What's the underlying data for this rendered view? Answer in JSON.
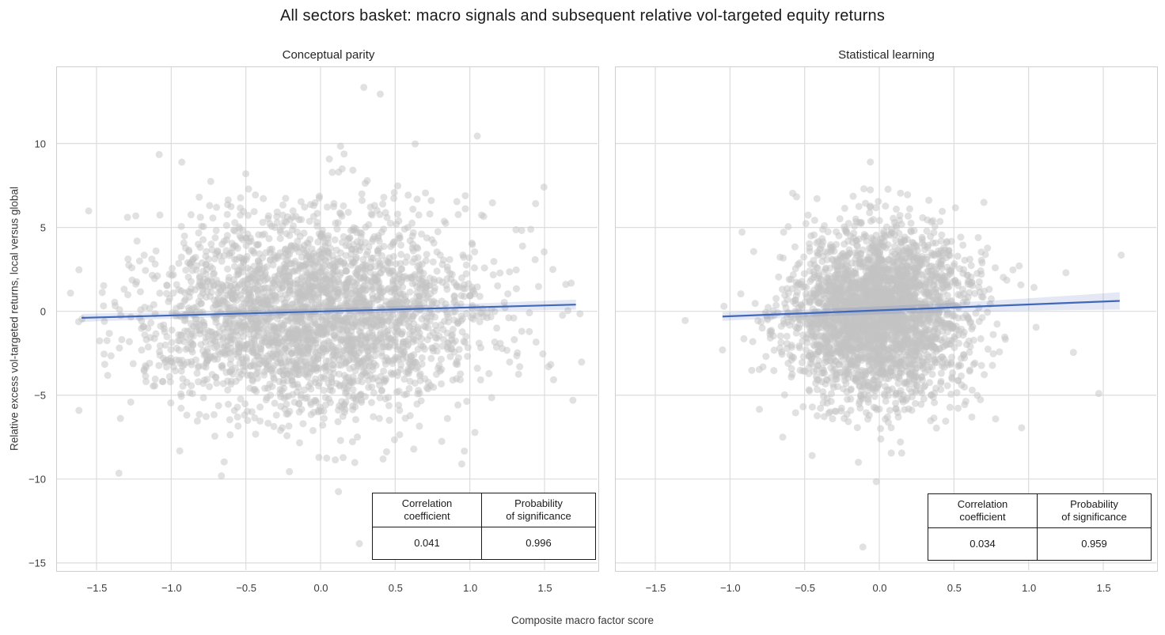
{
  "figure": {
    "title": "All sectors basket: macro signals and subsequent relative vol-targeted equity returns"
  },
  "table_headers": {
    "col1": [
      "Correlation",
      "coefficient"
    ],
    "col2": [
      "Probability",
      "of significance"
    ]
  },
  "chart_data": {
    "type": "scatter",
    "title": "All sectors basket: macro signals and subsequent relative vol-targeted equity returns",
    "xlabel": "Composite macro factor score",
    "ylabel": "Relative excess vol-targeted returns, local versus global",
    "grid": true,
    "legend": "none",
    "xlim": [
      -1.765,
      1.855
    ],
    "ylim": [
      -15.43,
      14.55
    ],
    "xticks": [
      -1.5,
      -1.0,
      -0.5,
      0.0,
      0.5,
      1.0,
      1.5
    ],
    "xtick_labels": [
      "−1.5",
      "−1.0",
      "−0.5",
      "0.0",
      "0.5",
      "1.0",
      "1.5"
    ],
    "yticks": [
      10,
      5,
      0,
      -5,
      -10,
      -15
    ],
    "ytick_labels": [
      "10",
      "5",
      "0",
      "−5",
      "−10",
      "−15"
    ],
    "colors": {
      "scatter_point": "rgba(195,195,195,0.5)",
      "regression_line": "#4168b8",
      "confidence_band": "rgba(66,103,178,0.15)",
      "gridline": "#dcdcdc",
      "panel_border": "#cfcfcf",
      "table_border": "#1a1a1a",
      "text": "#262626"
    },
    "panels": [
      {
        "title": "Conceptual parity",
        "stats": {
          "correlation_coefficient": "0.041",
          "probability_of_significance": "0.996"
        },
        "regression": {
          "x0": -1.6,
          "y0": -0.39,
          "x1": 1.71,
          "y1": 0.4,
          "band_half_width": {
            "start": 0.24,
            "mid": 0.1,
            "end": 0.3
          }
        },
        "scatter": {
          "n": 2900,
          "seed": 7,
          "x_mean": -0.02,
          "x_std": 0.55,
          "x_clip": [
            -1.7,
            1.76
          ],
          "y_mean": -0.15,
          "y_std": 2.95,
          "y_clip": [
            -10.3,
            10.1
          ],
          "slope": 0.24
        },
        "outliers": [
          [
            0.29,
            13.35
          ],
          [
            0.4,
            12.95
          ],
          [
            1.05,
            10.45
          ],
          [
            0.26,
            -13.85
          ],
          [
            -1.35,
            -9.65
          ],
          [
            0.12,
            -10.75
          ],
          [
            1.69,
            -5.3
          ],
          [
            -1.62,
            -0.62
          ]
        ]
      },
      {
        "title": "Statistical learning",
        "stats": {
          "correlation_coefficient": "0.034",
          "probability_of_significance": "0.959"
        },
        "regression": {
          "x0": -1.05,
          "y0": -0.31,
          "x1": 1.61,
          "y1": 0.62,
          "band_half_width": {
            "start": 0.26,
            "mid": 0.13,
            "end": 0.52
          }
        },
        "scatter": {
          "n": 2900,
          "seed": 11,
          "x_mean": 0.0,
          "x_std": 0.3,
          "x_clip": [
            -1.05,
            1.08
          ],
          "y_mean": -0.15,
          "y_std": 2.55,
          "y_clip": [
            -8.0,
            7.35
          ],
          "slope": 0.35
        },
        "outliers": [
          [
            -0.06,
            8.9
          ],
          [
            -0.11,
            -14.05
          ],
          [
            -0.02,
            -10.15
          ],
          [
            -0.14,
            -9.0
          ],
          [
            0.08,
            -8.45
          ],
          [
            0.15,
            -8.45
          ],
          [
            1.62,
            3.35
          ],
          [
            1.47,
            -4.9
          ],
          [
            1.3,
            -2.45
          ],
          [
            1.05,
            -0.95
          ],
          [
            -1.3,
            -0.55
          ],
          [
            -1.05,
            -2.3
          ],
          [
            1.25,
            2.3
          ],
          [
            0.62,
            -6.3
          ],
          [
            -0.45,
            -8.6
          ]
        ]
      }
    ]
  }
}
